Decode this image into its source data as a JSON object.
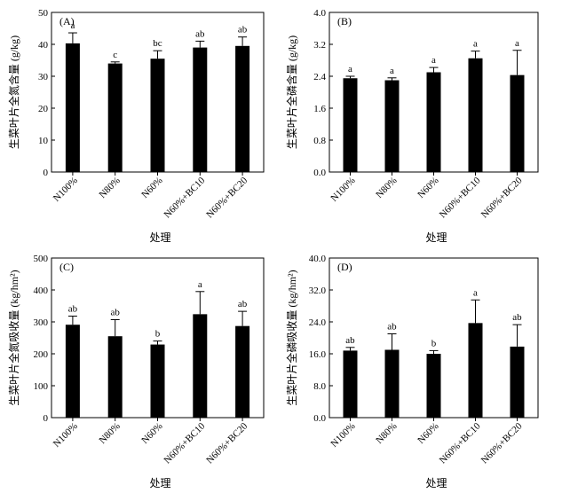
{
  "chart_data": [
    {
      "type": "bar",
      "panel_label": "(A)",
      "categories": [
        "N100%",
        "N80%",
        "N60%",
        "N60%+BC10",
        "N60%+BC20"
      ],
      "values": [
        40.3,
        34.0,
        35.5,
        39.0,
        39.5
      ],
      "errors": [
        3.3,
        0.5,
        2.5,
        2.0,
        2.8
      ],
      "significance": [
        "a",
        "c",
        "bc",
        "ab",
        "ab"
      ],
      "ylabel": "生菜叶片全氮含量 (g/kg)",
      "xlabel": "处理",
      "ylim": [
        0,
        50
      ],
      "yticks": [
        "0",
        "10",
        "20",
        "30",
        "40",
        "50"
      ]
    },
    {
      "type": "bar",
      "panel_label": "(B)",
      "categories": [
        "N100%",
        "N80%",
        "N60%",
        "N60%+BC10",
        "N60%+BC20"
      ],
      "values": [
        2.35,
        2.3,
        2.5,
        2.85,
        2.43
      ],
      "errors": [
        0.05,
        0.06,
        0.12,
        0.18,
        0.62
      ],
      "significance": [
        "a",
        "a",
        "a",
        "a",
        "a"
      ],
      "ylabel": "生菜叶片全磷含量 (g/kg)",
      "xlabel": "处理",
      "ylim": [
        0,
        4
      ],
      "yticks": [
        "0.0",
        "0.8",
        "1.6",
        "2.4",
        "3.2",
        "4.0"
      ]
    },
    {
      "type": "bar",
      "panel_label": "(C)",
      "categories": [
        "N100%",
        "N80%",
        "N60%",
        "N60%+BC10",
        "N60%+BC20"
      ],
      "values": [
        291,
        255,
        229,
        324,
        287
      ],
      "errors": [
        27,
        52,
        11,
        71,
        46
      ],
      "significance": [
        "ab",
        "ab",
        "b",
        "a",
        "ab"
      ],
      "ylabel": "生菜叶片全氮吸收量 (kg/hm²)",
      "xlabel": "处理",
      "ylim": [
        0,
        500
      ],
      "yticks": [
        "0",
        "100",
        "200",
        "300",
        "400",
        "500"
      ]
    },
    {
      "type": "bar",
      "panel_label": "(D)",
      "categories": [
        "N100%",
        "N80%",
        "N60%",
        "N60%+BC10",
        "N60%+BC20"
      ],
      "values": [
        16.8,
        17.0,
        16.0,
        23.7,
        17.8
      ],
      "errors": [
        0.8,
        4.0,
        0.8,
        5.8,
        5.5
      ],
      "significance": [
        "ab",
        "ab",
        "b",
        "a",
        "ab"
      ],
      "ylabel": "生菜叶片全磷吸收量 (kg/hm²)",
      "xlabel": "处理",
      "ylim": [
        0,
        40
      ],
      "yticks": [
        "0.0",
        "8.0",
        "16.0",
        "24.0",
        "32.0",
        "40.0"
      ]
    }
  ]
}
